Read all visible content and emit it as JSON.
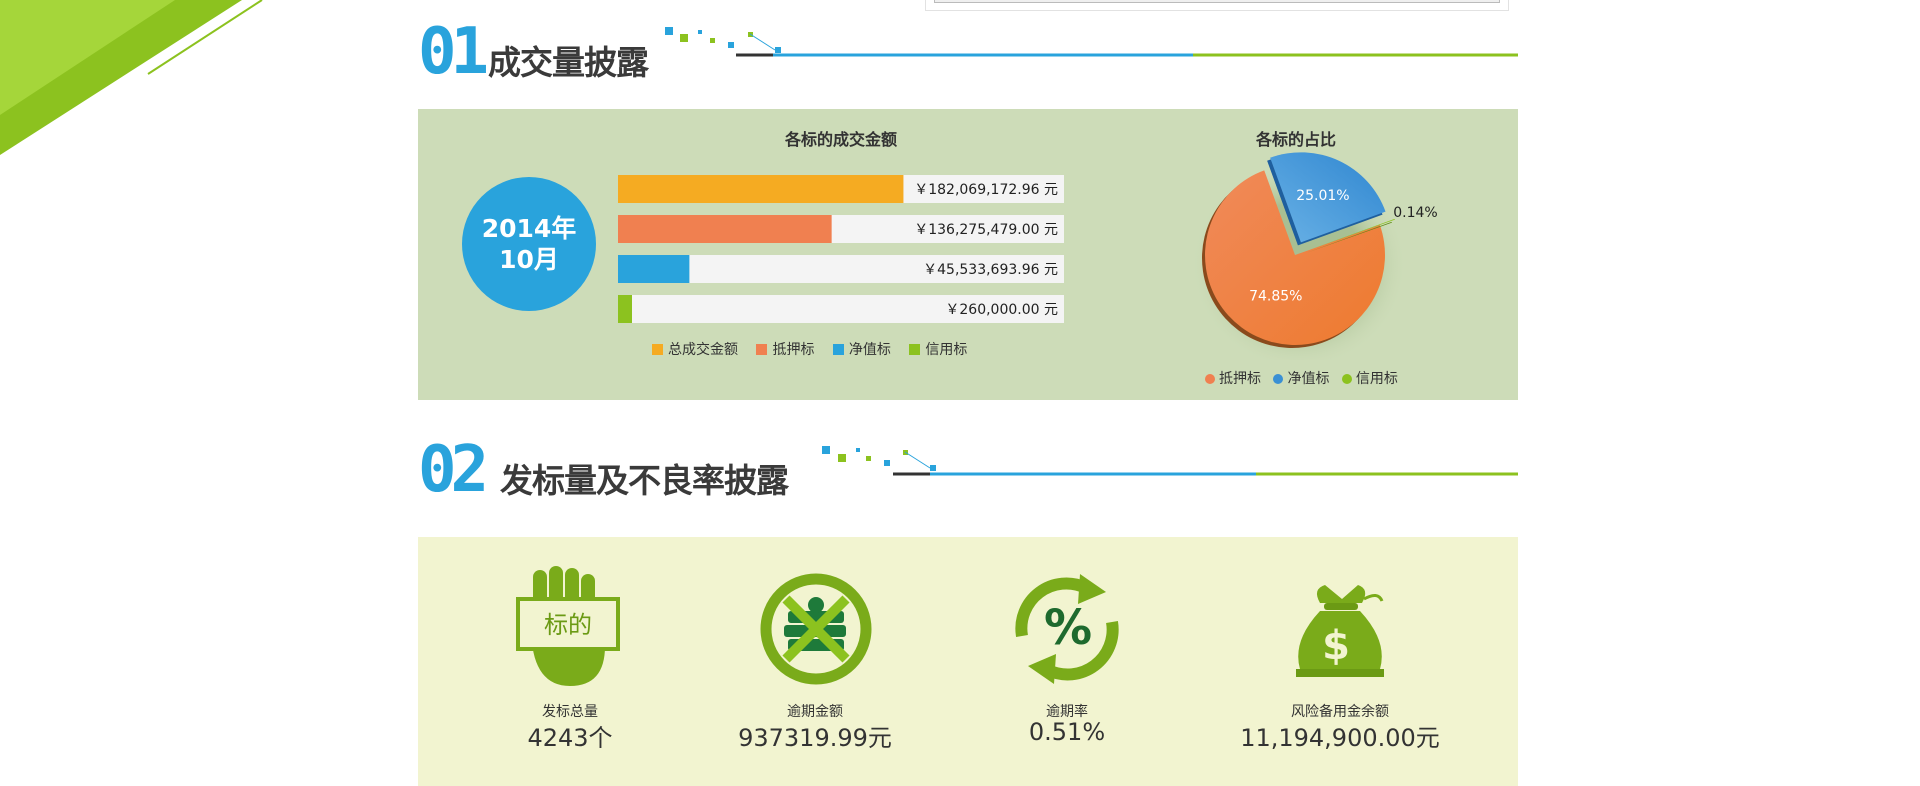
{
  "colors": {
    "green": "#8cc21f",
    "dark_green": "#6b9a14",
    "blue": "#29a3dc",
    "orange": "#f08050",
    "gold": "#f5ab22",
    "panel1_bg": "#cddcb8",
    "panel2_bg": "#f2f4d0"
  },
  "section1": {
    "number": "01",
    "title": "成交量披露"
  },
  "section2": {
    "number": "02",
    "title": "发标量及不良率披露"
  },
  "date_badge": {
    "year": "2014年",
    "month": "10月"
  },
  "chart_data": [
    {
      "type": "bar",
      "title": "各标的成交金额",
      "orientation": "horizontal",
      "categories": [
        "总成交金额",
        "抵押标",
        "净值标",
        "信用标"
      ],
      "values": [
        182069172.96,
        136275479.0,
        45533693.96,
        260000.0
      ],
      "value_labels": [
        "￥182,069,172.96 元",
        "￥136,275,479.00 元",
        "￥45,533,693.96 元",
        "￥260,000.00 元"
      ],
      "colors": [
        "#f5ab22",
        "#f08050",
        "#29a3dc",
        "#8cc21f"
      ],
      "legend_position": "bottom"
    },
    {
      "type": "pie",
      "title": "各标的占比",
      "categories": [
        "抵押标",
        "净值标",
        "信用标"
      ],
      "values": [
        74.85,
        25.01,
        0.14
      ],
      "value_labels": [
        "74.85%",
        "25.01%",
        "0.14%"
      ],
      "colors": [
        "#f08050",
        "#3a90d4",
        "#8cc21f"
      ],
      "legend_position": "bottom"
    }
  ],
  "stats": [
    {
      "icon": "hand-sign-icon",
      "icon_text": "标的",
      "label": "发标总量",
      "value": "4243个"
    },
    {
      "icon": "crossed-money-icon",
      "label": "逾期金额",
      "value": "937319.99元"
    },
    {
      "icon": "percent-cycle-icon",
      "icon_text": "%",
      "label": "逾期率",
      "value": "0.51%"
    },
    {
      "icon": "money-bag-icon",
      "icon_text": "$",
      "label": "风险备用金余额",
      "value": "11,194,900.00元"
    }
  ]
}
